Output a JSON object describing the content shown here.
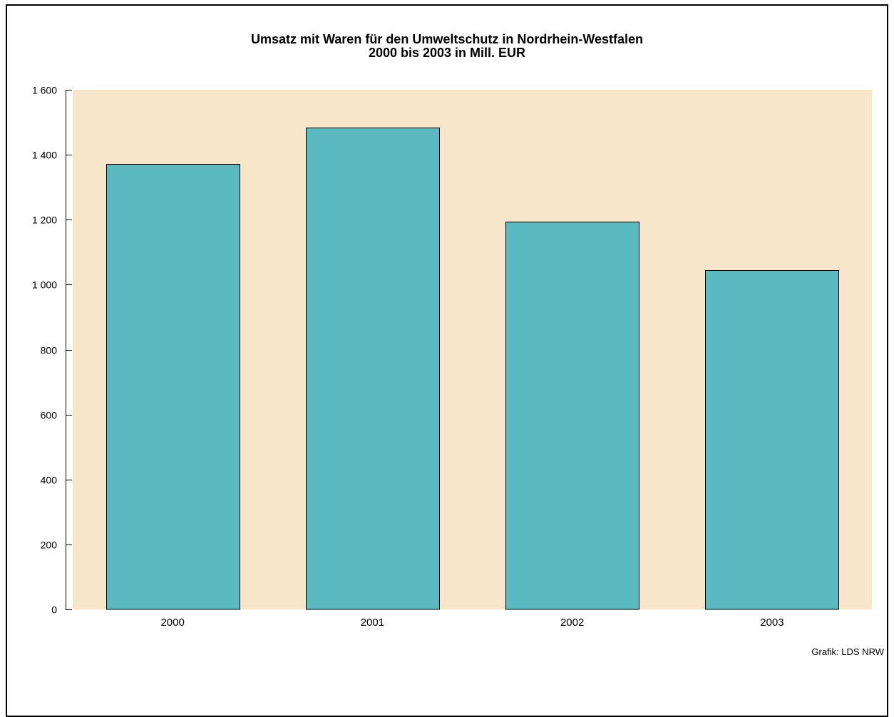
{
  "chart_data": {
    "type": "bar",
    "title": "Umsatz mit Waren für den Umweltschutz in Nordrhein-Westfalen",
    "subtitle": "2000 bis 2003 in Mill. EUR",
    "categories": [
      "2000",
      "2001",
      "2002",
      "2003"
    ],
    "values": [
      1372,
      1483,
      1195,
      1045
    ],
    "ylim": [
      0,
      1600
    ],
    "yticks": [
      0,
      200,
      400,
      600,
      800,
      1000,
      1200,
      1400,
      1600
    ],
    "ytick_labels": [
      "0",
      "200",
      "400",
      "600",
      "800",
      "1 000",
      "1 200",
      "1 400",
      "1 600"
    ],
    "xlabel": "",
    "ylabel": "",
    "grid": false,
    "colors": {
      "bar": "#5BB9C1",
      "plot_background": "#F8E6CA",
      "bar_outline": "#000000"
    }
  },
  "source_note": "Grafik: LDS NRW"
}
